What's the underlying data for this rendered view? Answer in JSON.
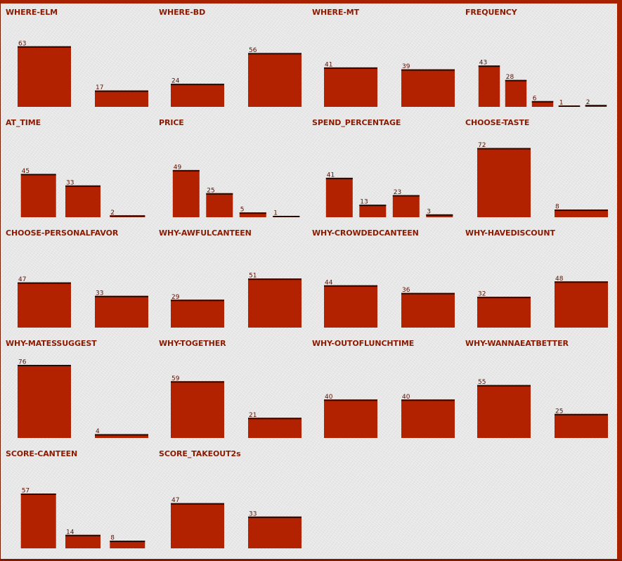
{
  "colors": {
    "bar": "#b32200",
    "bar_top": "#2a0800",
    "title": "#8b1a00",
    "border": "#a82200"
  },
  "chart_data": [
    {
      "type": "bar",
      "title": "WHERE-ELM",
      "values": [
        63,
        17
      ]
    },
    {
      "type": "bar",
      "title": "WHERE-BD",
      "values": [
        24,
        56
      ]
    },
    {
      "type": "bar",
      "title": "WHERE-MT",
      "values": [
        41,
        39
      ]
    },
    {
      "type": "bar",
      "title": "FREQUENCY",
      "values": [
        43,
        28,
        6,
        1,
        2
      ]
    },
    {
      "type": "bar",
      "title": "AT_TIME",
      "values": [
        45,
        33,
        2
      ]
    },
    {
      "type": "bar",
      "title": "PRICE",
      "values": [
        49,
        25,
        5,
        1
      ]
    },
    {
      "type": "bar",
      "title": "SPEND_PERCENTAGE",
      "values": [
        41,
        13,
        23,
        3
      ]
    },
    {
      "type": "bar",
      "title": "CHOOSE-TASTE",
      "values": [
        72,
        8
      ]
    },
    {
      "type": "bar",
      "title": "CHOOSE-PERSONALFAVOR",
      "values": [
        47,
        33
      ]
    },
    {
      "type": "bar",
      "title": "WHY-AWFULCANTEEN",
      "values": [
        29,
        51
      ]
    },
    {
      "type": "bar",
      "title": "WHY-CROWDEDCANTEEN",
      "values": [
        44,
        36
      ]
    },
    {
      "type": "bar",
      "title": "WHY-HAVEDISCOUNT",
      "values": [
        32,
        48
      ]
    },
    {
      "type": "bar",
      "title": "WHY-MATESSUGGEST",
      "values": [
        76,
        4
      ]
    },
    {
      "type": "bar",
      "title": "WHY-TOGETHER",
      "values": [
        59,
        21
      ]
    },
    {
      "type": "bar",
      "title": "WHY-OUTOFLUNCHTIME",
      "values": [
        40,
        40
      ]
    },
    {
      "type": "bar",
      "title": "WHY-WANNAEATBETTER",
      "values": [
        55,
        25
      ]
    },
    {
      "type": "bar",
      "title": "SCORE-CANTEEN",
      "values": [
        57,
        14,
        8
      ]
    },
    {
      "type": "bar",
      "title": "SCORE_TAKEOUT2s",
      "values": [
        47,
        33
      ]
    }
  ]
}
